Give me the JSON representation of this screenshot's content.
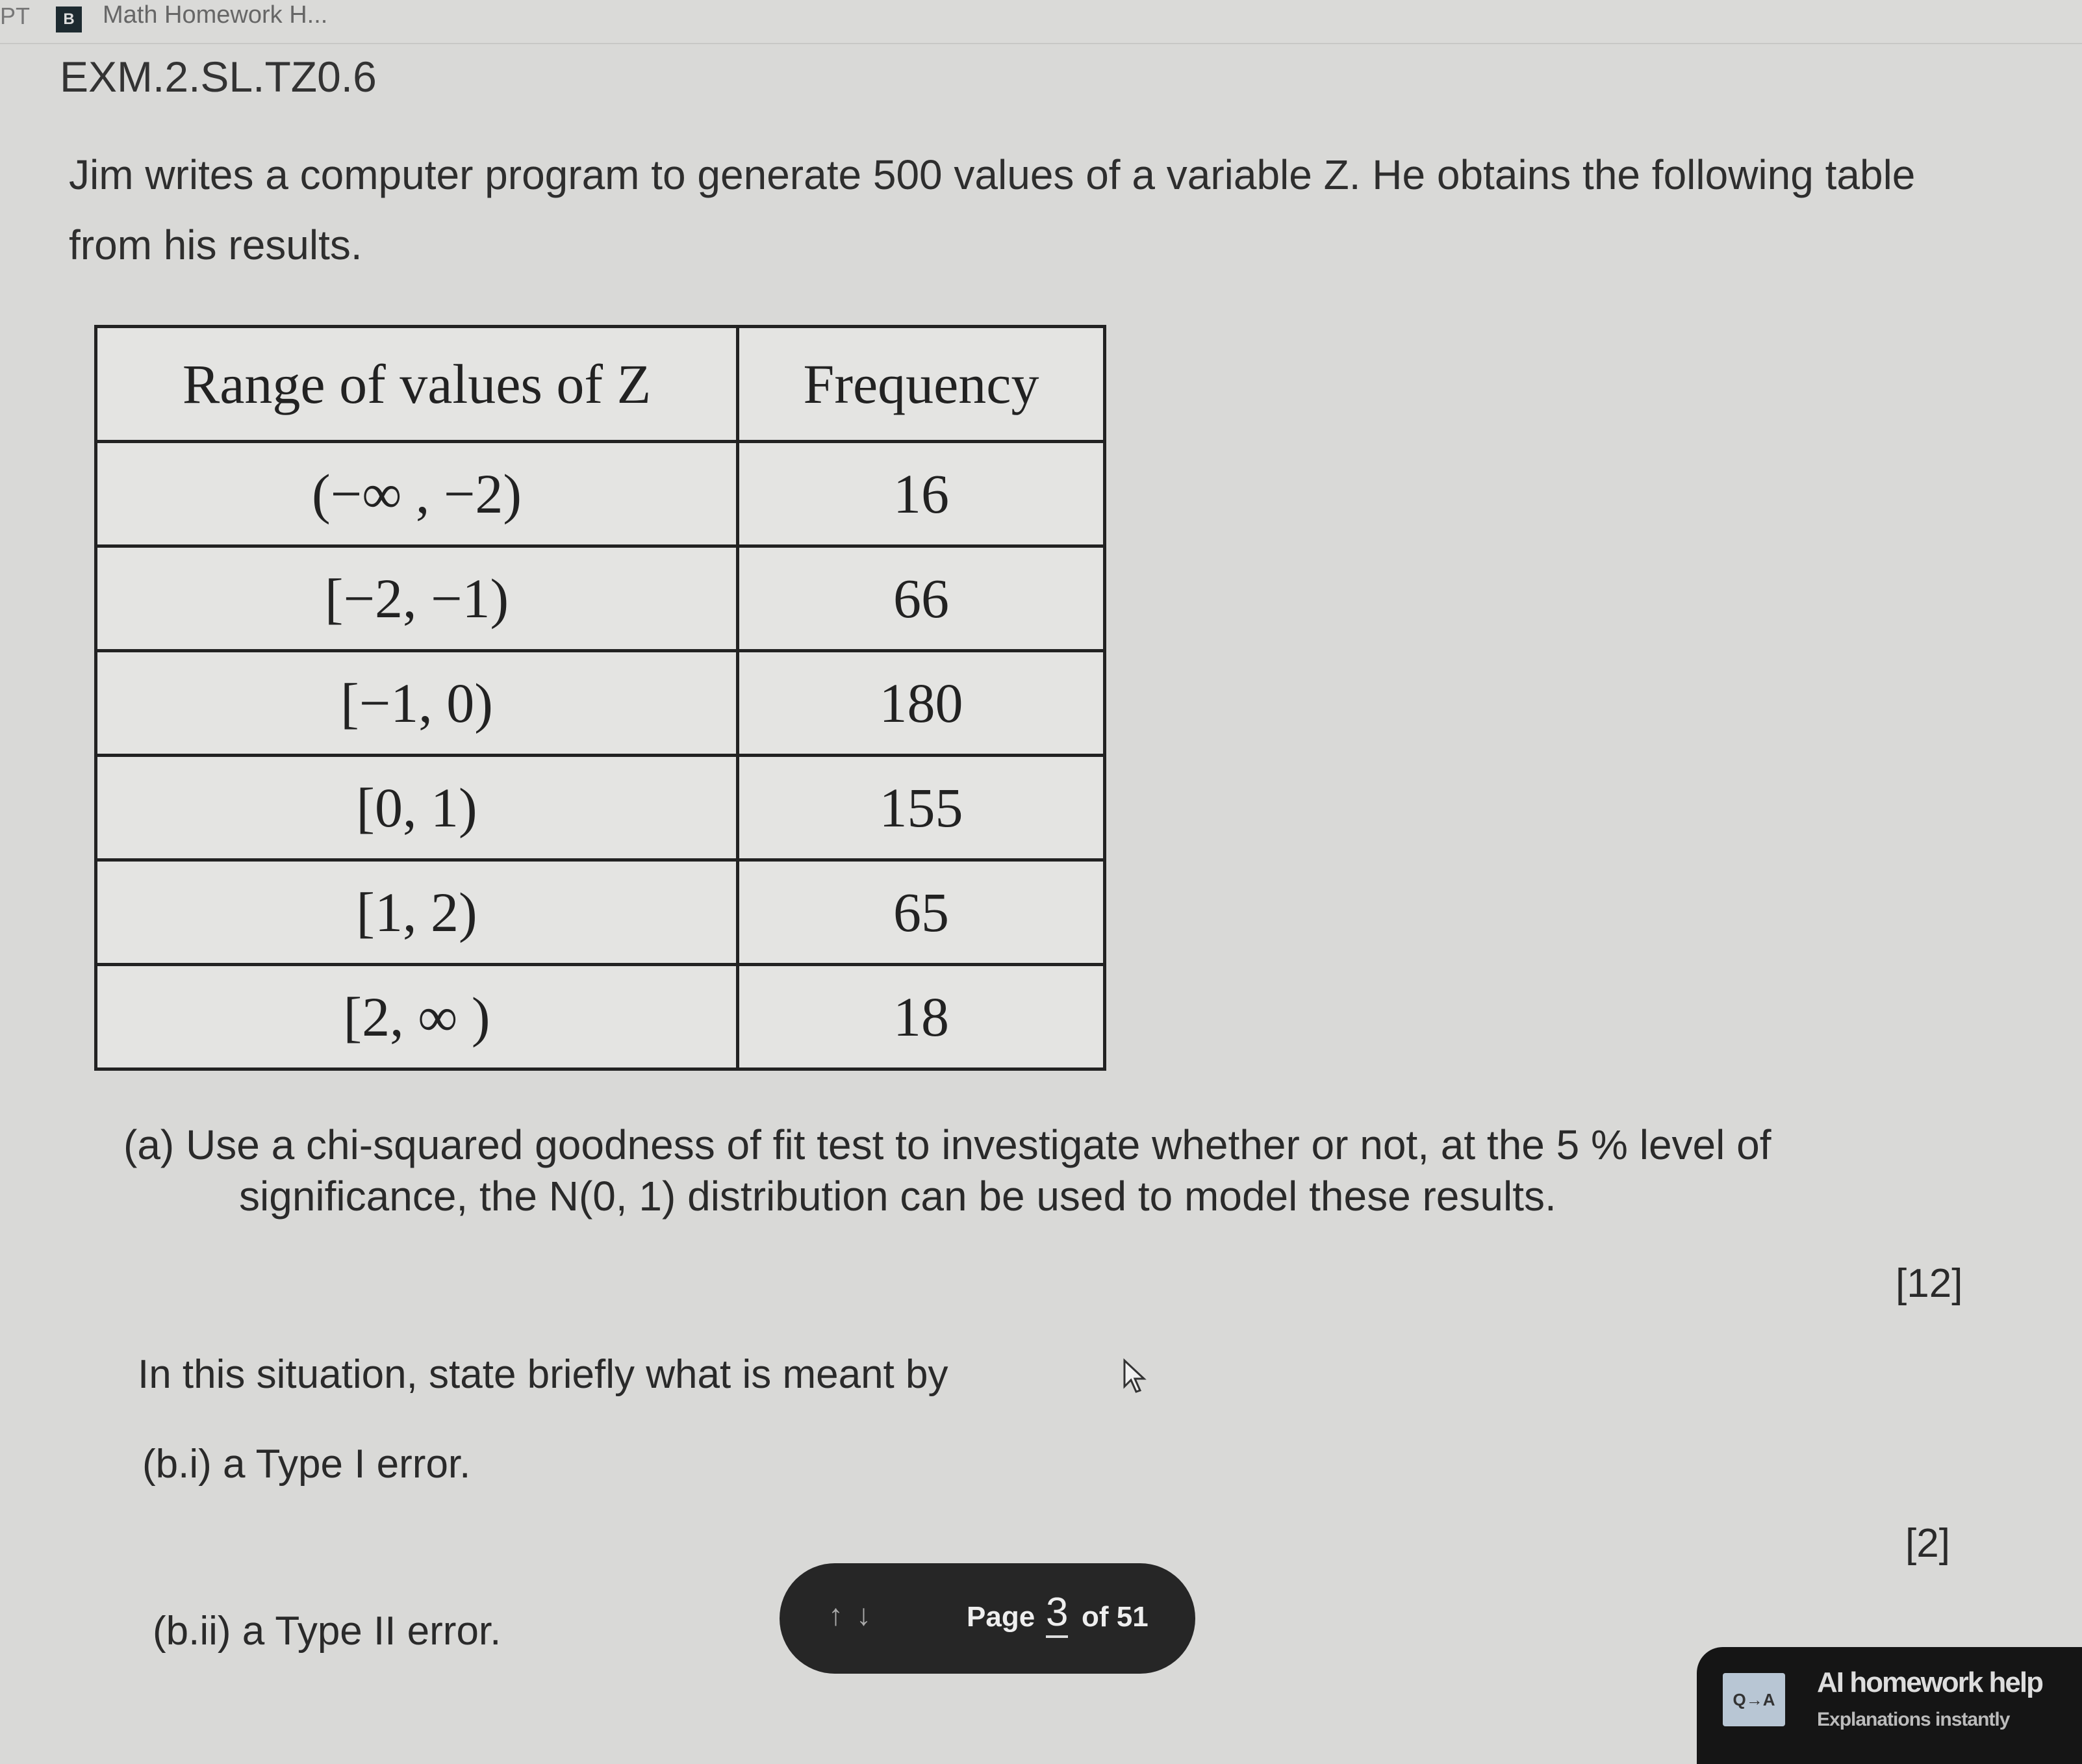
{
  "tabbar": {
    "prev_tab_fragment": "PT",
    "tab_icon_letter": "B",
    "tab_title": "Math Homework H..."
  },
  "question": {
    "id": "EXM.2.SL.TZ0.6",
    "intro": "Jim writes a computer program to generate 500 values of a variable Z. He obtains the following table from his results.",
    "table": {
      "headers": [
        "Range of values of Z",
        "Frequency"
      ],
      "rows": [
        [
          "(−∞ , −2)",
          "16"
        ],
        [
          "[−2, −1)",
          "66"
        ],
        [
          "[−1, 0)",
          "180"
        ],
        [
          "[0, 1)",
          "155"
        ],
        [
          "[1, 2)",
          "65"
        ],
        [
          "[2,  ∞ )",
          "18"
        ]
      ]
    },
    "part_a_line1": "(a) Use a chi-squared goodness of fit test to investigate whether or not, at the 5 % level of",
    "part_a_line2": "significance, the N(0, 1) distribution can be used to model these results.",
    "part_a_marks": "[12]",
    "part_b_stem": "In this situation, state briefly what is meant by",
    "part_b_i": "(b.i) a Type I error.",
    "part_b_i_marks": "[2]",
    "part_b_ii": "(b.ii) a Type II error."
  },
  "pager": {
    "arrows": "↑↓",
    "label": "Page",
    "current": "3",
    "of_total": "of 51"
  },
  "ai_help": {
    "badge": "Q→A",
    "title": "AI homework help",
    "subtitle": "Explanations instantly"
  }
}
